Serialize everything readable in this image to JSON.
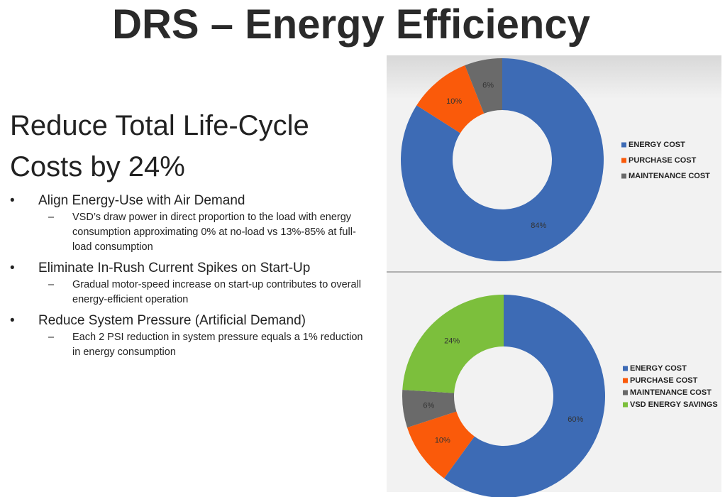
{
  "slide": {
    "title": "DRS – Energy Efficiency",
    "heading": "Reduce Total Life-Cycle Costs by 24%",
    "bullets": [
      {
        "text": "Align Energy-Use with Air Demand",
        "sub": "VSD’s draw power in direct proportion to the load with energy consumption approximating 0% at no-load vs 13%-85% at full-load consumption"
      },
      {
        "text": "Eliminate In-Rush Current Spikes on Start-Up",
        "sub": "Gradual motor-speed increase on start-up contributes to overall energy-efficient operation"
      },
      {
        "text": "Reduce System Pressure (Artificial Demand)",
        "sub": "Each 2 PSI reduction in system pressure equals a 1% reduction in energy consumption"
      }
    ]
  },
  "chart_data": [
    {
      "type": "donut",
      "categories": [
        "ENERGY COST",
        "PURCHASE COST",
        "MAINTENANCE COST"
      ],
      "values": [
        84,
        10,
        6
      ],
      "value_labels": [
        "84%",
        "10%",
        "6%"
      ],
      "colors": [
        "#3d6bb5",
        "#fa5a0a",
        "#6a6a6a"
      ]
    },
    {
      "type": "donut",
      "categories": [
        "ENERGY COST",
        "PURCHASE COST",
        "MAINTENANCE COST",
        "VSD ENERGY SAVINGS"
      ],
      "values": [
        60,
        10,
        6,
        24
      ],
      "value_labels": [
        "60%",
        "10%",
        "6%",
        "24%"
      ],
      "colors": [
        "#3d6bb5",
        "#fa5a0a",
        "#6a6a6a",
        "#7cbf3c"
      ]
    }
  ]
}
